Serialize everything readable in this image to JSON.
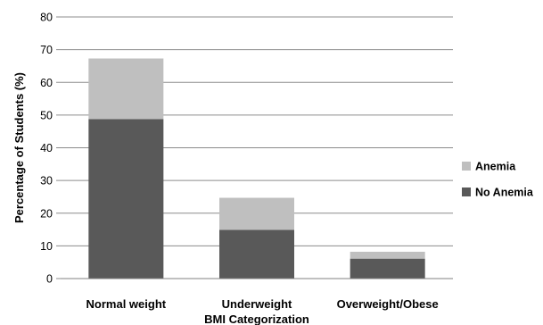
{
  "chart_data": {
    "type": "bar",
    "stacked": true,
    "title": "",
    "xlabel": "BMI Categorization",
    "ylabel": "Percentage of Students (%)",
    "ylim": [
      0,
      80
    ],
    "yticks": [
      0,
      10,
      20,
      30,
      40,
      50,
      60,
      70,
      80
    ],
    "grid": true,
    "legend_position": "right",
    "categories": [
      "Normal weight",
      "Underweight",
      "Overweight/Obese"
    ],
    "series": [
      {
        "name": "No Anemia",
        "values": [
          48.8,
          14.9,
          6.1
        ],
        "color": "#595959"
      },
      {
        "name": "Anemia",
        "values": [
          18.5,
          9.8,
          2.1
        ],
        "color": "#bfbfbf"
      }
    ],
    "legend_order": [
      "Anemia",
      "No Anemia"
    ]
  }
}
